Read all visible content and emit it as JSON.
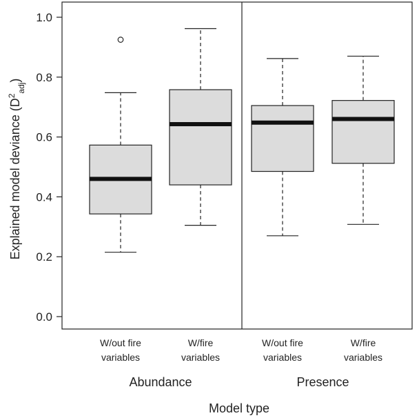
{
  "chart_data": {
    "type": "boxplot",
    "ylabel": {
      "main": "Explained model deviance (D",
      "sup": "2",
      "sub": "adj",
      "close": ")"
    },
    "xlabel": "Model type",
    "ylim": [
      0.0,
      1.0
    ],
    "yticks": [
      "0.0",
      "0.2",
      "0.4",
      "0.6",
      "0.8",
      "1.0"
    ],
    "grid": false,
    "groups": [
      {
        "name": "Abundance",
        "boxes": [
          {
            "label_lines": [
              "W/out fire",
              "variables"
            ],
            "whisker_low": 0.215,
            "q1": 0.343,
            "median": 0.46,
            "q3": 0.573,
            "whisker_high": 0.748,
            "outliers": [
              0.925
            ]
          },
          {
            "label_lines": [
              "W/fire",
              "variables"
            ],
            "whisker_low": 0.305,
            "q1": 0.44,
            "median": 0.643,
            "q3": 0.758,
            "whisker_high": 0.962,
            "outliers": []
          }
        ]
      },
      {
        "name": "Presence",
        "boxes": [
          {
            "label_lines": [
              "W/out fire",
              "variables"
            ],
            "whisker_low": 0.27,
            "q1": 0.485,
            "median": 0.648,
            "q3": 0.705,
            "whisker_high": 0.862,
            "outliers": []
          },
          {
            "label_lines": [
              "W/fire",
              "variables"
            ],
            "whisker_low": 0.308,
            "q1": 0.512,
            "median": 0.66,
            "q3": 0.722,
            "whisker_high": 0.87,
            "outliers": []
          }
        ]
      }
    ],
    "colors": {
      "box_fill": "#dcdcdc",
      "stroke": "#222222",
      "median": "#111111"
    }
  }
}
